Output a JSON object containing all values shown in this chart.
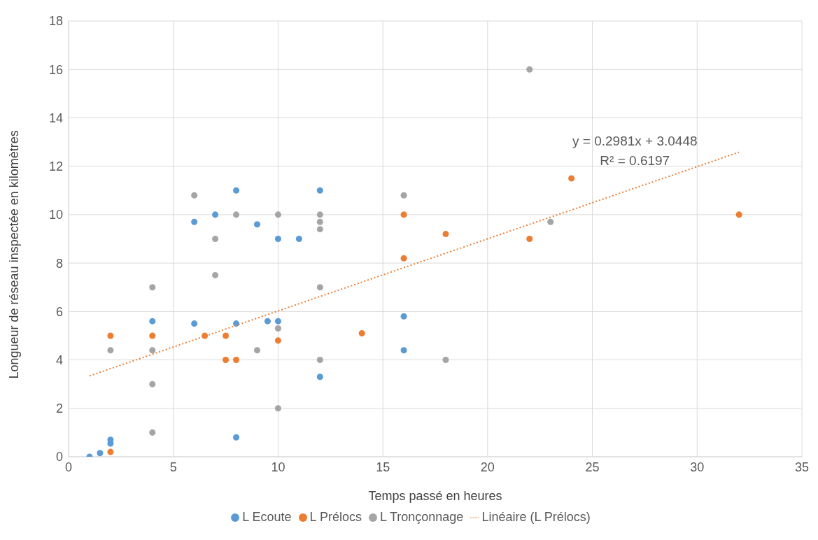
{
  "chart_data": {
    "type": "scatter",
    "xlabel": "Temps passé en heures",
    "ylabel": "Longueur de réseau inspectée en kilomètres",
    "xlim": [
      0,
      35
    ],
    "xticks": [
      0,
      5,
      10,
      15,
      20,
      25,
      30,
      35
    ],
    "ylim": [
      0,
      18
    ],
    "yticks": [
      0,
      2,
      4,
      6,
      8,
      10,
      12,
      14,
      16,
      18
    ],
    "grid": true,
    "legend": "bottom",
    "marker": "circle",
    "annotations": [
      "y = 0.2981x + 3.0448",
      "R² = 0.6197"
    ],
    "series": [
      {
        "name": "L Ecoute",
        "color": "#5b9bd5",
        "x": [
          1,
          1.5,
          2,
          2,
          4,
          6,
          6,
          7,
          8,
          8,
          8,
          9,
          9.5,
          10,
          10,
          11,
          12,
          12,
          16,
          16
        ],
        "values": [
          0,
          0.15,
          0.7,
          0.55,
          5.6,
          9.7,
          5.5,
          10,
          11,
          5.5,
          0.8,
          9.6,
          5.6,
          9,
          5.6,
          9,
          11,
          3.3,
          5.8,
          4.4
        ]
      },
      {
        "name": "L Prélocs",
        "color": "#ed7d31",
        "x": [
          2,
          2,
          4,
          6.5,
          7.5,
          7.5,
          8,
          10,
          14,
          16,
          16,
          18,
          22,
          24,
          32
        ],
        "values": [
          5,
          0.2,
          5,
          5,
          5,
          4,
          4,
          4.8,
          5.1,
          10,
          8.2,
          9.2,
          9,
          11.5,
          10
        ]
      },
      {
        "name": "L Tronçonnage",
        "color": "#a5a5a5",
        "x": [
          2,
          4,
          4,
          4,
          4,
          6,
          7,
          7,
          8,
          9,
          10,
          10,
          10,
          12,
          12,
          12,
          12,
          12,
          16,
          18,
          22,
          23
        ],
        "values": [
          4.4,
          7,
          4.4,
          3,
          1,
          10.8,
          9,
          7.5,
          10,
          4.4,
          10,
          5.3,
          2,
          10,
          9.7,
          9.4,
          7,
          4,
          10.8,
          4,
          16,
          9.7
        ]
      },
      {
        "name": "Linéaire (L Prélocs)",
        "type": "line",
        "line_style": "dotted",
        "marker": "none",
        "color": "#ed7d31",
        "x": [
          1,
          32
        ],
        "values": [
          3.34,
          12.58
        ]
      }
    ]
  }
}
